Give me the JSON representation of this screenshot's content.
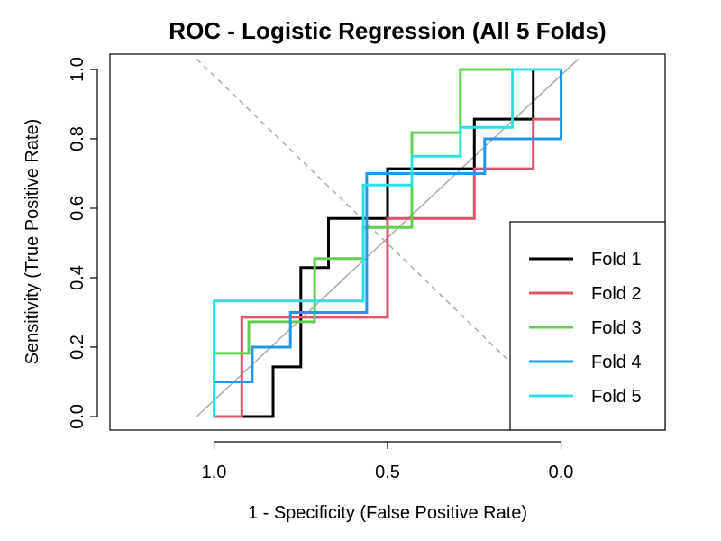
{
  "chart_data": {
    "type": "line",
    "title": "ROC - Logistic Regression (All 5 Folds)",
    "xlabel": "1 - Specificity (False Positive Rate)",
    "ylabel": "Sensitivity (True Positive Rate)",
    "x_axis_reversed": true,
    "xlim": [
      1.3,
      -0.3
    ],
    "ylim": [
      0.0,
      1.0
    ],
    "x_ticks": [
      1.0,
      0.5,
      0.0
    ],
    "x_tick_labels": [
      "1.0",
      "0.5",
      "0.0"
    ],
    "y_ticks": [
      0.0,
      0.2,
      0.4,
      0.6,
      0.8,
      1.0
    ],
    "y_tick_labels": [
      "0.0",
      "0.2",
      "0.4",
      "0.6",
      "0.8",
      "1.0"
    ],
    "grid": false,
    "legend_position": "bottom-right",
    "reference_lines": [
      {
        "style": "solid",
        "color": "#aaaaaa",
        "points": [
          [
            1.05,
            0.0
          ],
          [
            -0.05,
            1.03
          ]
        ]
      },
      {
        "style": "dashed",
        "color": "#aaaaaa",
        "points": [
          [
            1.05,
            1.03
          ],
          [
            0.15,
            0.16
          ]
        ]
      }
    ],
    "series": [
      {
        "name": "Fold 1",
        "color": "#000000",
        "points": [
          [
            1.0,
            0.0
          ],
          [
            0.83,
            0.0
          ],
          [
            0.83,
            0.143
          ],
          [
            0.75,
            0.143
          ],
          [
            0.75,
            0.429
          ],
          [
            0.67,
            0.429
          ],
          [
            0.67,
            0.571
          ],
          [
            0.5,
            0.571
          ],
          [
            0.5,
            0.714
          ],
          [
            0.25,
            0.714
          ],
          [
            0.25,
            0.857
          ],
          [
            0.08,
            0.857
          ],
          [
            0.08,
            1.0
          ],
          [
            0.0,
            1.0
          ]
        ]
      },
      {
        "name": "Fold 2",
        "color": "#DF536B",
        "points": [
          [
            1.0,
            0.0
          ],
          [
            0.92,
            0.0
          ],
          [
            0.92,
            0.286
          ],
          [
            0.5,
            0.286
          ],
          [
            0.5,
            0.571
          ],
          [
            0.25,
            0.571
          ],
          [
            0.25,
            0.714
          ],
          [
            0.08,
            0.714
          ],
          [
            0.08,
            0.857
          ],
          [
            0.0,
            0.857
          ],
          [
            0.0,
            1.0
          ]
        ]
      },
      {
        "name": "Fold 3",
        "color": "#61D04F",
        "points": [
          [
            1.0,
            0.0
          ],
          [
            1.0,
            0.182
          ],
          [
            0.9,
            0.182
          ],
          [
            0.9,
            0.273
          ],
          [
            0.71,
            0.273
          ],
          [
            0.71,
            0.455
          ],
          [
            0.57,
            0.455
          ],
          [
            0.57,
            0.545
          ],
          [
            0.43,
            0.545
          ],
          [
            0.43,
            0.818
          ],
          [
            0.29,
            0.818
          ],
          [
            0.29,
            1.0
          ],
          [
            0.0,
            1.0
          ]
        ]
      },
      {
        "name": "Fold 4",
        "color": "#2297E6",
        "points": [
          [
            1.0,
            0.0
          ],
          [
            1.0,
            0.1
          ],
          [
            0.89,
            0.1
          ],
          [
            0.89,
            0.2
          ],
          [
            0.78,
            0.2
          ],
          [
            0.78,
            0.3
          ],
          [
            0.56,
            0.3
          ],
          [
            0.56,
            0.7
          ],
          [
            0.22,
            0.7
          ],
          [
            0.22,
            0.8
          ],
          [
            0.0,
            0.8
          ],
          [
            0.0,
            1.0
          ]
        ]
      },
      {
        "name": "Fold 5",
        "color": "#28E2E5",
        "points": [
          [
            1.0,
            0.0
          ],
          [
            1.0,
            0.333
          ],
          [
            0.57,
            0.333
          ],
          [
            0.57,
            0.667
          ],
          [
            0.43,
            0.667
          ],
          [
            0.43,
            0.75
          ],
          [
            0.29,
            0.75
          ],
          [
            0.29,
            0.833
          ],
          [
            0.14,
            0.833
          ],
          [
            0.14,
            1.0
          ],
          [
            0.0,
            1.0
          ]
        ]
      }
    ]
  }
}
